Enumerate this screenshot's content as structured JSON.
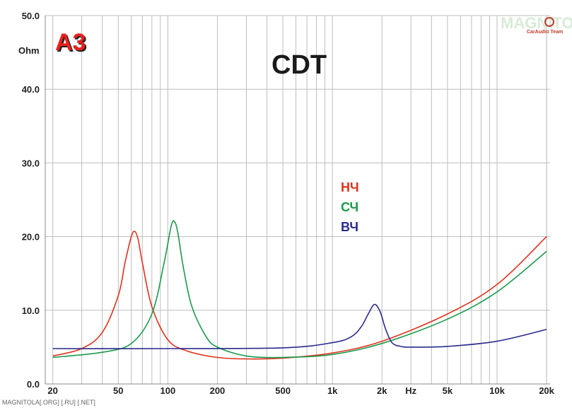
{
  "chart_data": {
    "type": "line",
    "title": "CDT",
    "x_scale": "log",
    "xlim": [
      18,
      21000
    ],
    "ylim": [
      0,
      50
    ],
    "y_unit": "Ohm",
    "x_unit": "Hz",
    "grid": true,
    "yticks": [
      "0.0",
      "10.0",
      "20.0",
      "30.0",
      "40.0",
      "50.0"
    ],
    "xticks": [
      {
        "label": "20",
        "value": 20
      },
      {
        "label": "50",
        "value": 50
      },
      {
        "label": "100",
        "value": 100
      },
      {
        "label": "200",
        "value": 200
      },
      {
        "label": "500",
        "value": 500
      },
      {
        "label": "1k",
        "value": 1000
      },
      {
        "label": "2k",
        "value": 2000
      },
      {
        "label": "Hz",
        "value": 3000
      },
      {
        "label": "5k",
        "value": 5000
      },
      {
        "label": "10k",
        "value": 10000
      },
      {
        "label": "20k",
        "value": 20000
      }
    ],
    "series": [
      {
        "name": "НЧ",
        "color": "#e0321e",
        "x": [
          20,
          30,
          40,
          50,
          55,
          60,
          63,
          66,
          70,
          80,
          100,
          130,
          200,
          300,
          500,
          1000,
          2000,
          5000,
          10000,
          20000
        ],
        "y": [
          3.8,
          4.8,
          7.0,
          12.0,
          16.5,
          20.0,
          20.7,
          19.6,
          16.5,
          10.5,
          6.0,
          4.5,
          3.6,
          3.4,
          3.5,
          4.2,
          5.8,
          9.5,
          13.5,
          20.0
        ]
      },
      {
        "name": "СЧ",
        "color": "#1a9a4a",
        "x": [
          20,
          40,
          60,
          80,
          95,
          105,
          110,
          115,
          125,
          140,
          170,
          200,
          300,
          500,
          1000,
          2000,
          5000,
          10000,
          20000
        ],
        "y": [
          3.6,
          4.3,
          5.5,
          9.5,
          16.5,
          21.5,
          22.0,
          20.5,
          15.5,
          10.5,
          6.5,
          5.0,
          3.8,
          3.6,
          4.0,
          5.5,
          8.8,
          12.5,
          18.0
        ]
      },
      {
        "name": "ВЧ",
        "color": "#2a2a8c",
        "x": [
          20,
          100,
          500,
          1000,
          1300,
          1500,
          1650,
          1800,
          1950,
          2100,
          2300,
          2600,
          3000,
          5000,
          10000,
          20000
        ],
        "y": [
          4.8,
          4.8,
          4.9,
          5.6,
          6.4,
          7.8,
          9.5,
          10.8,
          9.8,
          7.5,
          5.6,
          5.1,
          5.0,
          5.1,
          5.8,
          7.4
        ]
      }
    ]
  },
  "badge": "A3",
  "watermark_logo": "MAGNITOLA",
  "watermark_logo_sub": "CarAudio Team",
  "footer_watermark": "MAGNITOLA[.ORG] [.RU] [.NET]"
}
